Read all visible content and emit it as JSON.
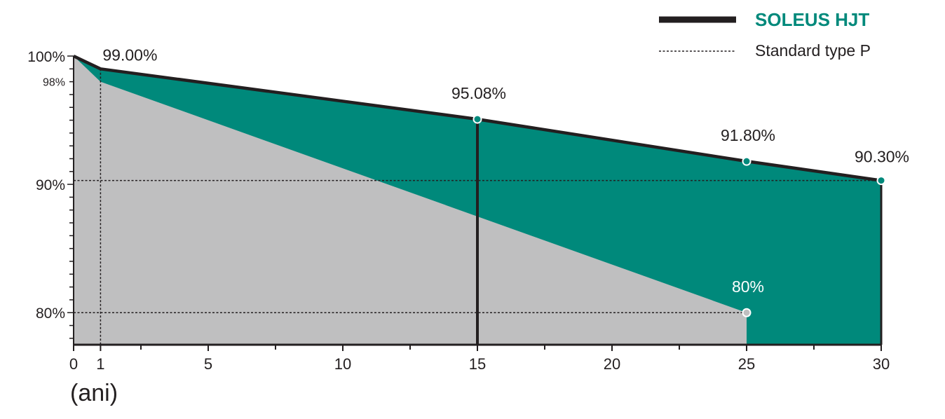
{
  "chart_data": {
    "type": "area",
    "xlabel": "(ani)",
    "ylabel": "",
    "title": "",
    "xlim": [
      0,
      30
    ],
    "ylim": [
      77.5,
      100
    ],
    "x_ticks": [
      {
        "value": 0,
        "label": "0"
      },
      {
        "value": 1,
        "label": "1"
      },
      {
        "value": 5,
        "label": "5"
      },
      {
        "value": 10,
        "label": "10"
      },
      {
        "value": 15,
        "label": "15"
      },
      {
        "value": 20,
        "label": "20"
      },
      {
        "value": 25,
        "label": "25"
      },
      {
        "value": 30,
        "label": "30"
      }
    ],
    "y_ticks": [
      {
        "value": 100,
        "label": "100%"
      },
      {
        "value": 98,
        "label": "98%"
      },
      {
        "value": 90,
        "label": "90%"
      },
      {
        "value": 80,
        "label": "80%"
      }
    ],
    "legend_position": "top-right",
    "series": [
      {
        "name": "SOLEUS HJT",
        "color": "#00897b",
        "line_color": "#231f20",
        "x": [
          0,
          1,
          15,
          25,
          30
        ],
        "y": [
          100,
          99.0,
          95.08,
          91.8,
          90.3
        ]
      },
      {
        "name": "Standard type P",
        "color": "#bfbfc0",
        "x": [
          0,
          1,
          25
        ],
        "y": [
          100,
          98,
          80
        ]
      }
    ],
    "annotations": [
      {
        "text": "99.00%",
        "x": 1,
        "y": 99.0,
        "color": "#231f20",
        "marker": false
      },
      {
        "text": "95.08%",
        "x": 15,
        "y": 95.08,
        "color": "#231f20",
        "marker": true
      },
      {
        "text": "91.80%",
        "x": 25,
        "y": 91.8,
        "color": "#231f20",
        "marker": true
      },
      {
        "text": "90.30%",
        "x": 30,
        "y": 90.3,
        "color": "#231f20",
        "marker": true
      },
      {
        "text": "80%",
        "x": 25,
        "y": 80,
        "color": "#ffffff",
        "marker": true
      }
    ],
    "guides": [
      {
        "type": "horizontal",
        "y": 90.3,
        "from_x": 0,
        "to_x": 30
      },
      {
        "type": "horizontal",
        "y": 80,
        "from_x": 0,
        "to_x": 25
      },
      {
        "type": "vertical",
        "x": 1,
        "from_y": 99.0,
        "to_y": 77.5
      }
    ],
    "vertical_bar_at_x": 15,
    "grid": false
  }
}
